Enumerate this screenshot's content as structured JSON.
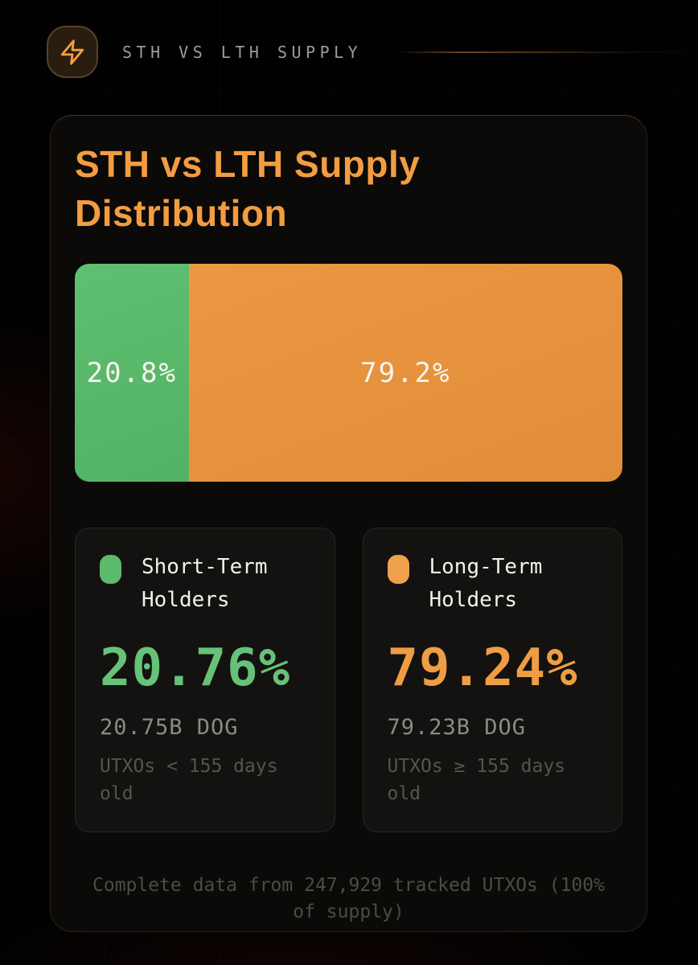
{
  "header": {
    "icon": "lightning",
    "title": "STH VS LTH SUPPLY"
  },
  "card": {
    "title": "STH vs LTH Supply Distribution",
    "footnote": "Complete data from 247,929 tracked UTXOs (100% of supply)"
  },
  "chart_data": {
    "type": "bar",
    "variant": "horizontal-stacked-percentage",
    "title": "STH vs LTH Supply Distribution",
    "categories": [
      "Short-Term Holders",
      "Long-Term Holders"
    ],
    "values": [
      20.76,
      79.24
    ],
    "xlim": [
      0,
      100
    ],
    "units": "% of supply",
    "legend_position": "below-as-stat-cards",
    "series": [
      {
        "name": "Short-Term Holders",
        "bar_percent": 20.8,
        "bar_label": "20.8%",
        "percent_of_supply": 20.76,
        "value_label": "20.76%",
        "amount": "20.75B DOG",
        "definition": "UTXOs < 155 days old",
        "color": "#56b467"
      },
      {
        "name": "Long-Term Holders",
        "bar_percent": 79.2,
        "bar_label": "79.2%",
        "percent_of_supply": 79.24,
        "value_label": "79.24%",
        "amount": "79.23B DOG",
        "definition": "UTXOs ≥ 155 days old",
        "color": "#e6923e"
      }
    ],
    "footnote": "Complete data from 247,929 tracked UTXOs (100% of supply)"
  },
  "colors": {
    "title_orange": "#f39c42",
    "sth_green": "#56b467",
    "lth_orange": "#e6923e",
    "card_background": "#0b0a08",
    "page_background": "#010101"
  }
}
